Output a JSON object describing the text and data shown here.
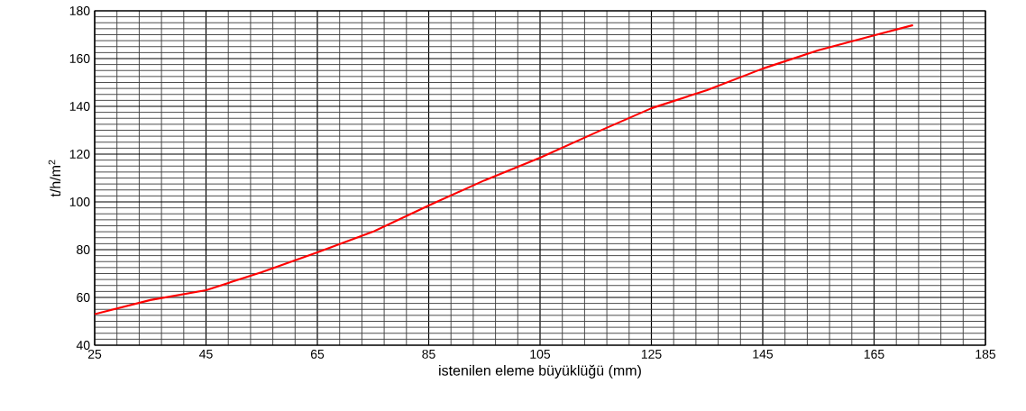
{
  "chart_data": {
    "type": "line",
    "xlabel": "istenilen eleme büyüklüğü (mm)",
    "ylabel": "t/h/m$^{2}$",
    "xlim": [
      25,
      185
    ],
    "ylim": [
      40,
      180
    ],
    "xticks": [
      25,
      45,
      65,
      85,
      105,
      125,
      145,
      165,
      185
    ],
    "yticks": [
      40,
      60,
      80,
      100,
      120,
      140,
      160,
      180
    ],
    "grid": true,
    "marker": "none",
    "line_style": "solid",
    "series": [
      {
        "color": "#ff0000",
        "x": [
          25,
          35,
          45,
          55,
          65,
          75,
          85,
          95,
          105,
          115,
          125,
          135,
          145,
          155,
          165,
          172
        ],
        "values": [
          53,
          58.9,
          63,
          70.6,
          78.9,
          87.5,
          98.5,
          109,
          118.5,
          129,
          139.2,
          146.8,
          155.8,
          163.5,
          169.7,
          174
        ]
      }
    ]
  }
}
